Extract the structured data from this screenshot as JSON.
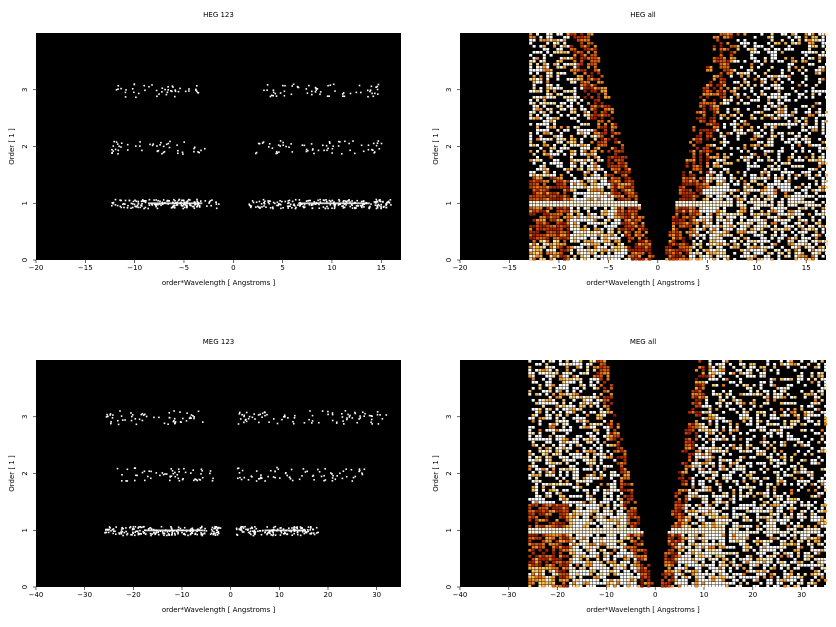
{
  "chart_data": [
    {
      "type": "heatmap",
      "title": "HEG 123",
      "xlabel": "order*Wavelength [ Angstroms ]",
      "ylabel": "Order [ 1 ]",
      "xlim": [
        -20,
        17
      ],
      "ylim": [
        0,
        4
      ],
      "xticks": [
        -20,
        -15,
        -10,
        -5,
        0,
        5,
        10,
        15
      ],
      "yticks": [
        0,
        1,
        2,
        3
      ],
      "colormap": "black-red-orange-yellow-white",
      "background": "#000000",
      "order_bands": [
        {
          "order": 1,
          "x_ranges": [
            [
              -12.5,
              -1.5
            ],
            [
              1.5,
              16
            ]
          ]
        },
        {
          "order": 2,
          "x_ranges": [
            [
              -12.5,
              -2.5
            ],
            [
              2,
              15
            ]
          ]
        },
        {
          "order": 3,
          "x_ranges": [
            [
              -12,
              -3
            ],
            [
              3,
              15
            ]
          ]
        }
      ],
      "mode": "sparse"
    },
    {
      "type": "heatmap",
      "title": "HEG all",
      "xlabel": "order*Wavelength [ Angstroms ]",
      "ylabel": "Order [ 1 ]",
      "xlim": [
        -20,
        17
      ],
      "ylim": [
        0,
        4
      ],
      "xticks": [
        -20,
        -15,
        -10,
        -5,
        0,
        5,
        10,
        15
      ],
      "yticks": [
        0,
        1,
        2,
        3
      ],
      "colormap": "black-red-orange-yellow-white",
      "background": "#000000",
      "data_xrange": [
        -13,
        17
      ],
      "zero_order_gap": [
        -1.0,
        1.0
      ],
      "mode": "dense"
    },
    {
      "type": "heatmap",
      "title": "MEG 123",
      "xlabel": "order*Wavelength [ Angstroms ]",
      "ylabel": "Order [ 1 ]",
      "xlim": [
        -40,
        35
      ],
      "ylim": [
        0,
        4
      ],
      "xticks": [
        -40,
        -30,
        -20,
        -10,
        0,
        10,
        20,
        30
      ],
      "yticks": [
        0,
        1,
        2,
        3
      ],
      "colormap": "black-red-orange-yellow-white",
      "background": "#000000",
      "order_bands": [
        {
          "order": 1,
          "x_ranges": [
            [
              -26,
              -2
            ],
            [
              1,
              18
            ]
          ]
        },
        {
          "order": 2,
          "x_ranges": [
            [
              -24,
              -3
            ],
            [
              1,
              28
            ]
          ]
        },
        {
          "order": 3,
          "x_ranges": [
            [
              -26,
              -5
            ],
            [
              1,
              32
            ]
          ]
        }
      ],
      "mode": "sparse"
    },
    {
      "type": "heatmap",
      "title": "MEG all",
      "xlabel": "order*Wavelength [ Angstroms ]",
      "ylabel": "Order [ 1 ]",
      "xlim": [
        -40,
        35
      ],
      "ylim": [
        0,
        4
      ],
      "xticks": [
        -40,
        -30,
        -20,
        -10,
        0,
        10,
        20,
        30
      ],
      "yticks": [
        0,
        1,
        2,
        3
      ],
      "colormap": "black-red-orange-yellow-white",
      "background": "#000000",
      "data_xrange": [
        -26,
        35
      ],
      "zero_order_gap": [
        -1.5,
        1.5
      ],
      "mode": "dense"
    }
  ]
}
